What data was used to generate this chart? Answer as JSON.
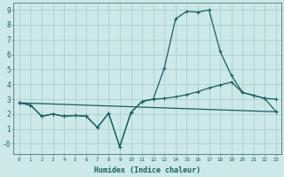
{
  "xlabel": "Humidex (Indice chaleur)",
  "bg_color": "#cce8e8",
  "grid_color": "#aad0d0",
  "line_color": "#1a6060",
  "xlim": [
    -0.5,
    23.5
  ],
  "ylim": [
    -0.7,
    9.5
  ],
  "xticks": [
    0,
    1,
    2,
    3,
    4,
    5,
    6,
    7,
    8,
    9,
    10,
    11,
    12,
    13,
    14,
    15,
    16,
    17,
    18,
    19,
    20,
    21,
    22,
    23
  ],
  "yticks": [
    0,
    1,
    2,
    3,
    4,
    5,
    6,
    7,
    8,
    9
  ],
  "line1_x": [
    0,
    1,
    2,
    3,
    4,
    5,
    6,
    7,
    8,
    9,
    10,
    11,
    12,
    13,
    14,
    15,
    16,
    17,
    18,
    19,
    20,
    21,
    22,
    23
  ],
  "line1_y": [
    2.75,
    2.6,
    1.85,
    2.0,
    1.85,
    1.9,
    1.85,
    1.1,
    2.05,
    -0.2,
    2.1,
    2.85,
    3.0,
    5.1,
    8.4,
    8.9,
    8.85,
    9.0,
    6.2,
    4.6,
    3.45,
    3.25,
    3.05,
    3.0
  ],
  "line2_x": [
    0,
    1,
    2,
    3,
    4,
    5,
    6,
    7,
    8,
    9,
    10,
    11,
    12,
    13,
    14,
    15,
    16,
    17,
    18,
    19,
    20,
    21,
    22,
    23
  ],
  "line2_y": [
    2.75,
    2.6,
    1.85,
    2.0,
    1.85,
    1.9,
    1.85,
    1.1,
    2.05,
    -0.2,
    2.1,
    2.85,
    3.0,
    3.05,
    3.15,
    3.3,
    3.5,
    3.75,
    3.95,
    4.15,
    3.45,
    3.25,
    3.05,
    2.15
  ],
  "line3_x": [
    0,
    23
  ],
  "line3_y": [
    2.75,
    2.15
  ],
  "marker": "+"
}
